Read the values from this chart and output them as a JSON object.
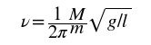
{
  "formula": "$\\nu = \\dfrac{1}{2\\pi}\\dfrac{M}{m}\\sqrt{g/l}$",
  "text_color": "#000000",
  "background_color": "#ffffff",
  "fontsize": 15,
  "font_family": "STIXGeneral",
  "math_fontfamily": "stix"
}
